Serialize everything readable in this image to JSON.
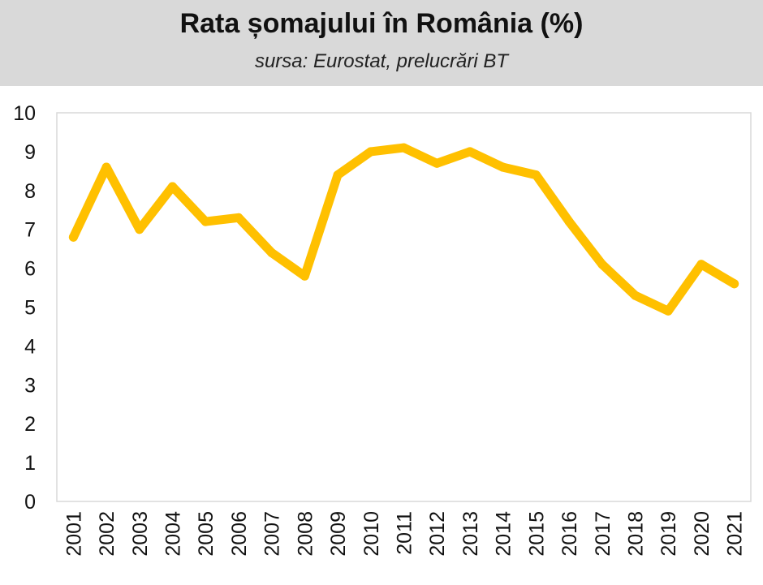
{
  "chart_data": {
    "type": "line",
    "title": "Rata șomajului în România (%)",
    "subtitle": "sursa: Eurostat, prelucrări BT",
    "xlabel": "",
    "ylabel": "",
    "ylim": [
      0,
      10
    ],
    "yticks": [
      0,
      1,
      2,
      3,
      4,
      5,
      6,
      7,
      8,
      9,
      10
    ],
    "x": [
      "2001",
      "2002",
      "2003",
      "2004",
      "2005",
      "2006",
      "2007",
      "2008",
      "2009",
      "2010",
      "2011",
      "2012",
      "2013",
      "2014",
      "2015",
      "2016",
      "2017",
      "2018",
      "2019",
      "2020",
      "2021"
    ],
    "series": [
      {
        "values": [
          6.8,
          8.6,
          7.0,
          8.1,
          7.2,
          7.3,
          6.4,
          5.8,
          8.4,
          9.0,
          9.1,
          8.7,
          9.0,
          8.6,
          8.4,
          7.2,
          6.1,
          5.3,
          4.9,
          6.1,
          5.6
        ],
        "color": "#ffc000"
      }
    ],
    "grid": false,
    "legend": "none"
  }
}
